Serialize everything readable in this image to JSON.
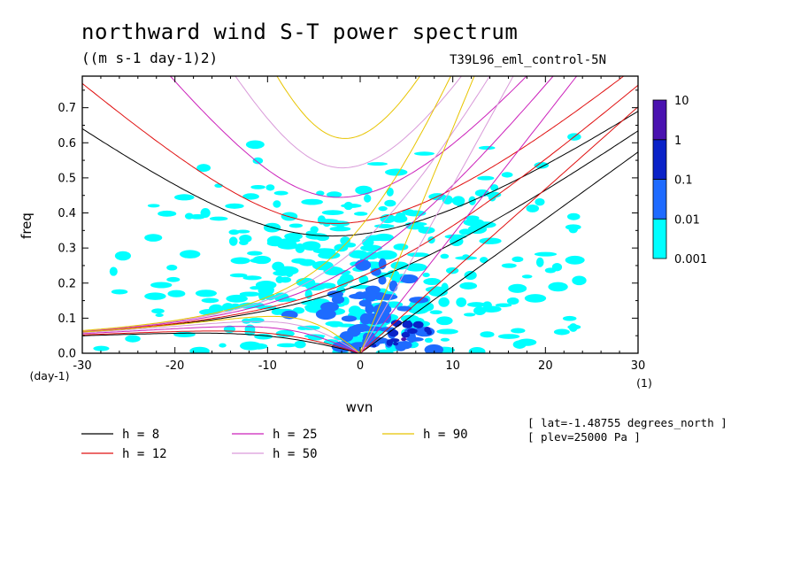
{
  "title": "northward wind S-T power spectrum",
  "units_label": "((m s-1 day-1)2)",
  "experiment": "T39L96_eml_control-5N",
  "metadata": [
    "[ lat=-1.48755 degrees_north ]",
    "[ plev=25000 Pa ]"
  ],
  "colors": {
    "h8": "#000000",
    "h12": "#e01010",
    "h25": "#cc22bb",
    "h50": "#d99ad9",
    "h90": "#e8c400",
    "levels": [
      "#00ffff",
      "#1e6bff",
      "#0a22c8",
      "#4a12b0"
    ]
  },
  "chart_data": {
    "type": "heatmap",
    "title": "northward wind S-T power spectrum",
    "xlabel": "wvn",
    "ylabel": "freq",
    "x_units": "(1)",
    "y_units": "(day-1)",
    "xlim": [
      -30,
      30
    ],
    "ylim": [
      0,
      0.79
    ],
    "x_ticks": [
      -30,
      -20,
      -10,
      0,
      10,
      20,
      30
    ],
    "x_tick_labels": [
      "-30",
      "-20",
      "-10",
      "0",
      "10",
      "20",
      "30"
    ],
    "y_ticks": [
      0,
      0.1,
      0.2,
      0.3,
      0.4,
      0.5,
      0.6,
      0.7
    ],
    "y_tick_labels": [
      "0.0",
      "0.1",
      "0.2",
      "0.3",
      "0.4",
      "0.5",
      "0.6",
      "0.7"
    ],
    "colorbar": {
      "levels": [
        0.001,
        0.01,
        0.1,
        1,
        10
      ],
      "labels": [
        "0.001",
        "0.01",
        "0.1",
        "1",
        "10"
      ]
    },
    "dispersion_curves": {
      "equivalent_depths": [
        8,
        12,
        25,
        50,
        90
      ],
      "legend": [
        {
          "label": "h =  8",
          "color": "#000000"
        },
        {
          "label": "h = 12",
          "color": "#e01010"
        },
        {
          "label": "h = 25",
          "color": "#cc22bb"
        },
        {
          "label": "h = 50",
          "color": "#d99ad9"
        },
        {
          "label": "h = 90",
          "color": "#e8c400"
        }
      ]
    },
    "power_regions": [
      {
        "level": 0,
        "x": [
          -25,
          22
        ],
        "y": [
          0.0,
          0.62
        ],
        "description": "noisy background"
      },
      {
        "level": 1,
        "x": [
          -8,
          10
        ],
        "y": [
          0.0,
          0.3
        ]
      },
      {
        "level": 2,
        "x": [
          2,
          7
        ],
        "y": [
          0.01,
          0.09
        ]
      },
      {
        "level": 3,
        "x": [
          4,
          5
        ],
        "y": [
          0.03,
          0.05
        ]
      }
    ]
  }
}
